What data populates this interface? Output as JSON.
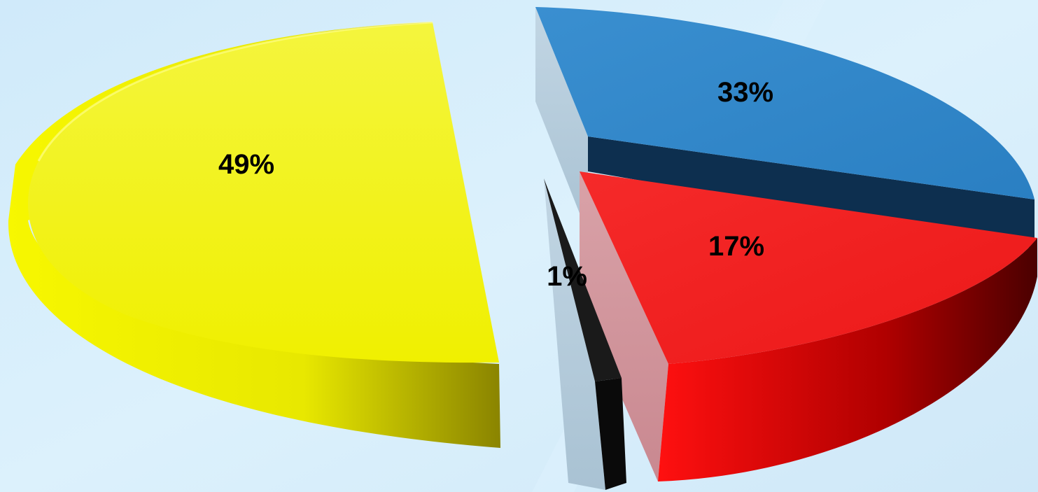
{
  "chart_data": {
    "type": "pie",
    "style": "3d-exploded",
    "slices": [
      {
        "label": "49%",
        "value": 49,
        "color": "#f5f52a"
      },
      {
        "label": "33%",
        "value": 33,
        "color": "#2f86c8"
      },
      {
        "label": "17%",
        "value": 17,
        "color": "#f21e1e"
      },
      {
        "label": "1%",
        "value": 1,
        "color": "#111111"
      }
    ],
    "background": "#d4ecfa",
    "legend": "none"
  }
}
